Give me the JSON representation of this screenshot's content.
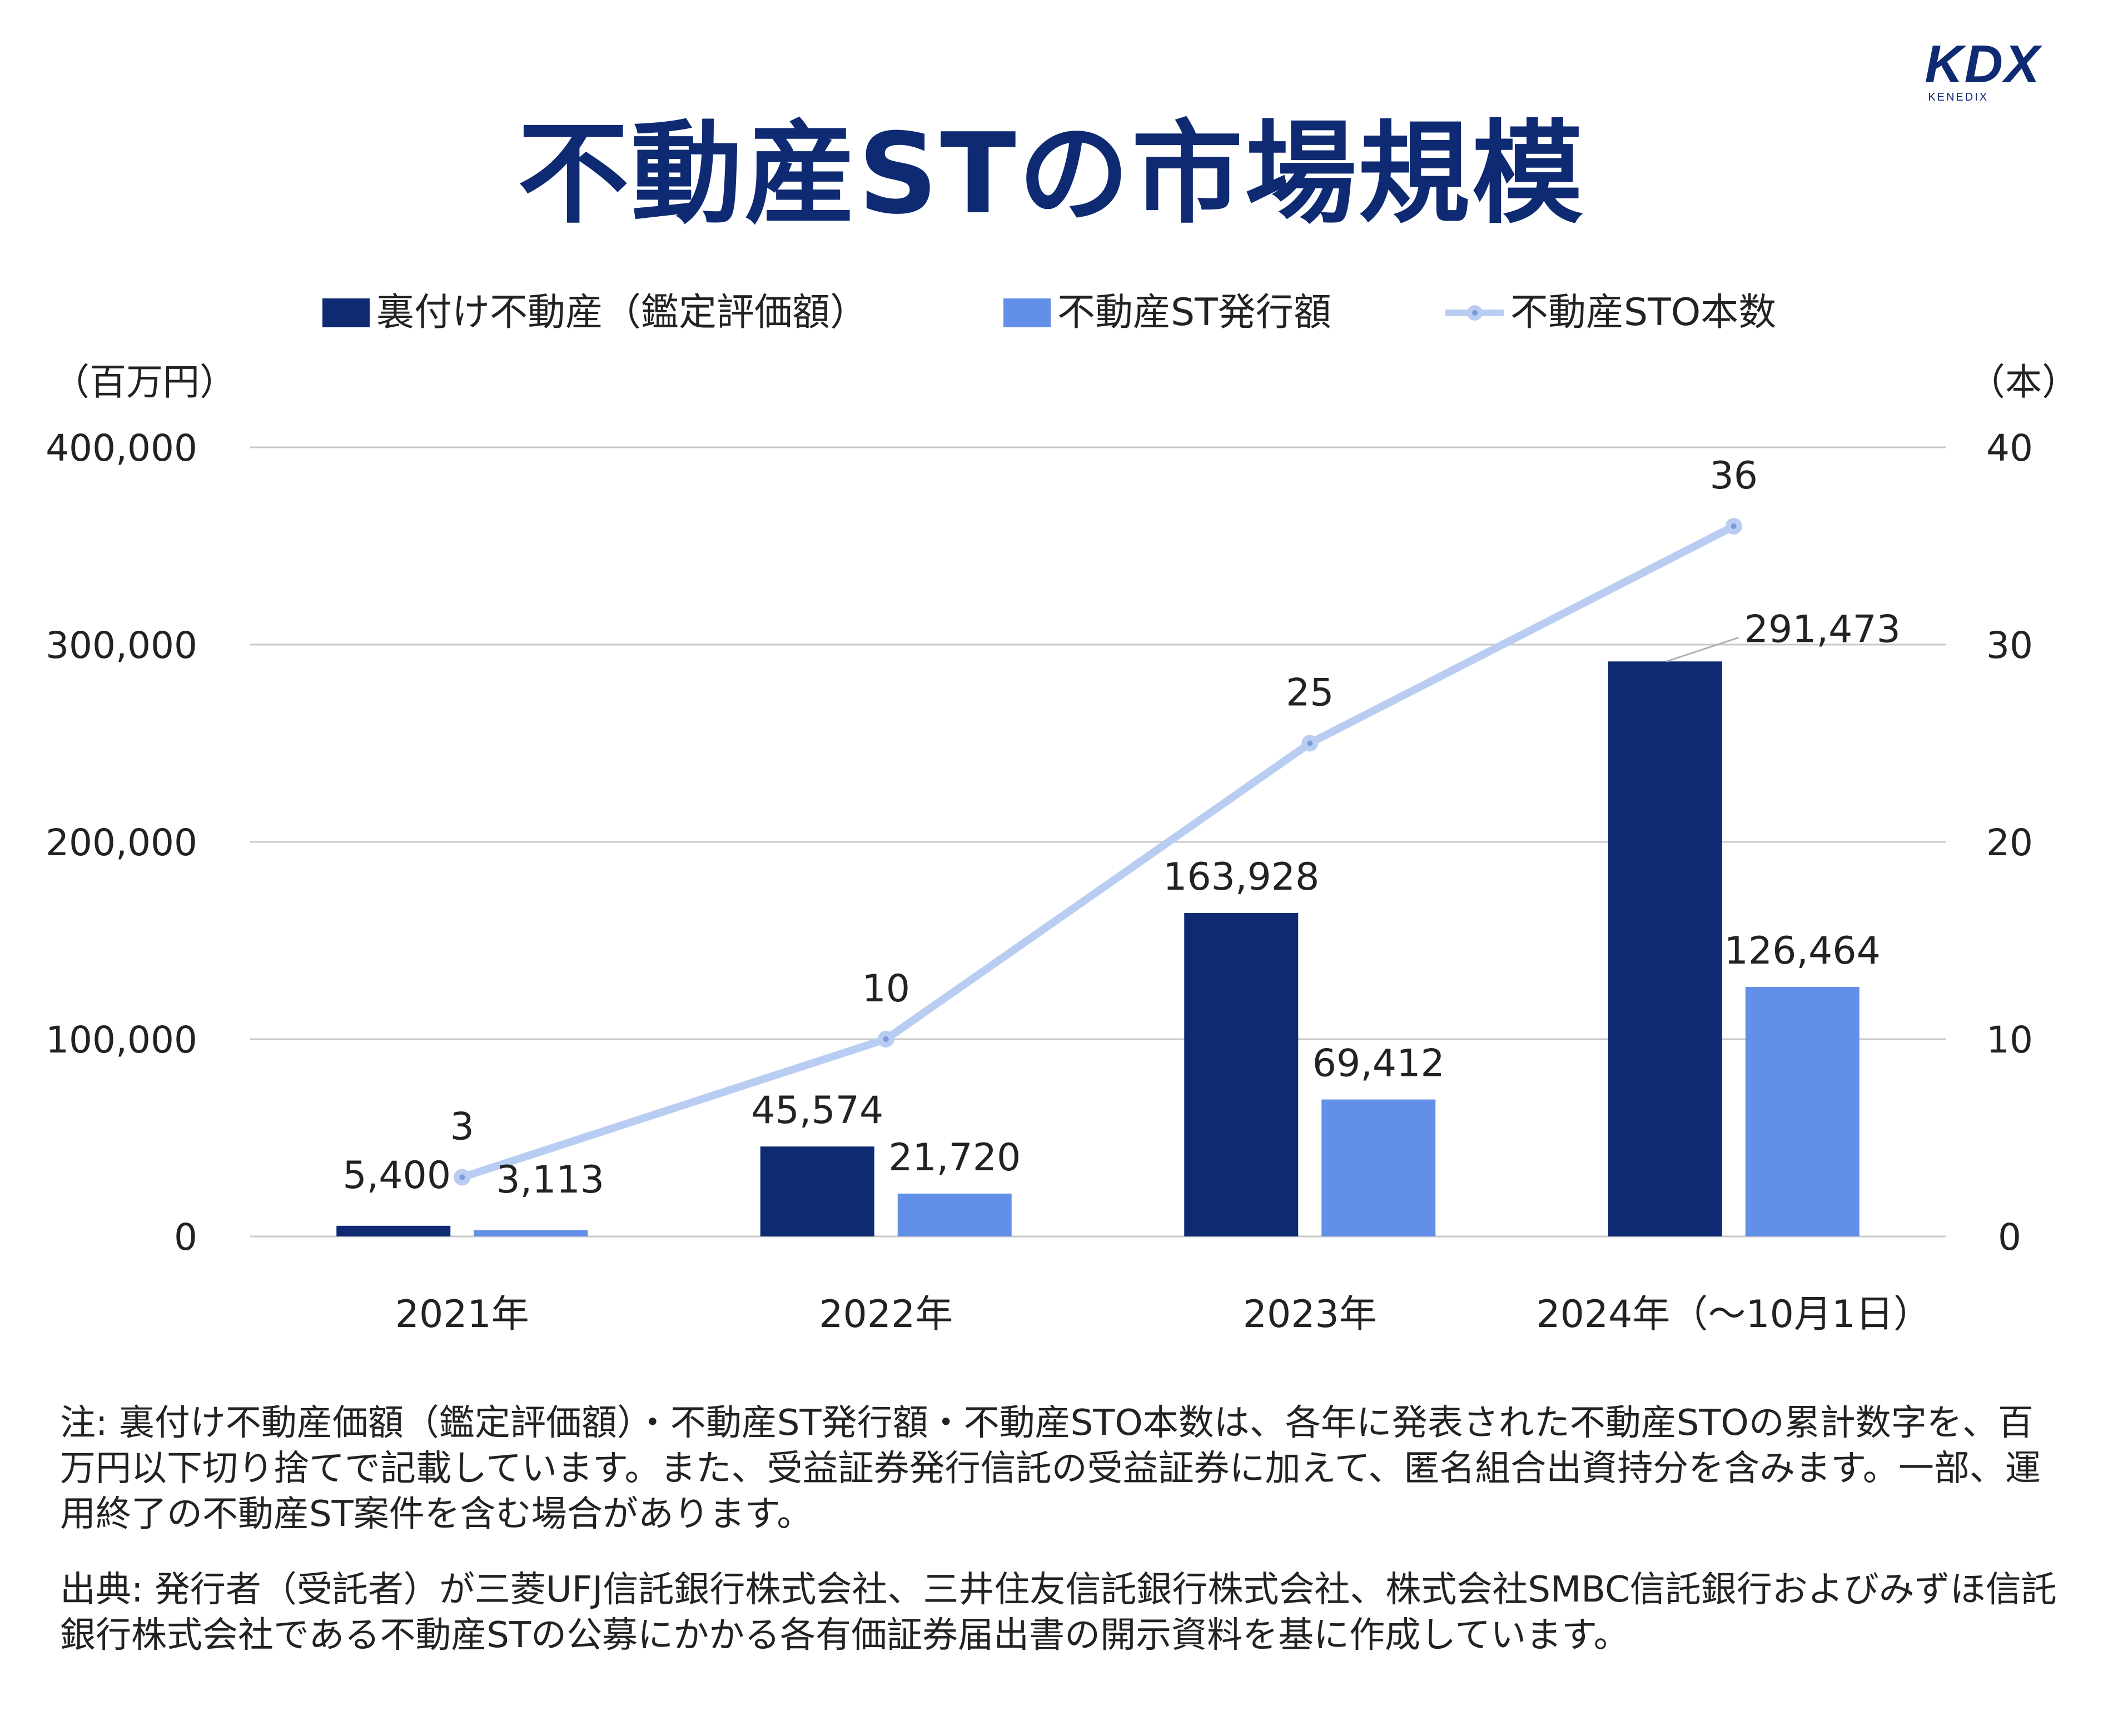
{
  "logo": {
    "main": "KDX",
    "sub": "KENEDIX"
  },
  "title": "不動産STの市場規模",
  "colors": {
    "title": "#0e2a72",
    "bar_dark": "#0e2a72",
    "bar_light": "#628fe8",
    "line": "#b8cdf1",
    "grid": "#c8c8c8"
  },
  "chart_data": {
    "type": "bar",
    "categories": [
      "2021年",
      "2022年",
      "2023年",
      "2024年（～10月1日）"
    ],
    "y_left": {
      "unit": "（百万円）",
      "min": 0,
      "max": 400000,
      "ticks": [
        "0",
        "100,000",
        "200,000",
        "300,000",
        "400,000"
      ]
    },
    "y_right": {
      "unit": "（本）",
      "min": 0,
      "max": 40,
      "ticks": [
        "0",
        "10",
        "20",
        "30",
        "40"
      ]
    },
    "grid": true,
    "legend_position": "top",
    "series": [
      {
        "name": "裏付け不動産（鑑定評価額）",
        "type": "bar",
        "axis": "left",
        "values": [
          5400,
          45574,
          163928,
          291473
        ],
        "labels": [
          "5,400",
          "45,574",
          "163,928",
          "291,473"
        ]
      },
      {
        "name": "不動産ST発行額",
        "type": "bar",
        "axis": "left",
        "values": [
          3113,
          21720,
          69412,
          126464
        ],
        "labels": [
          "3,113",
          "21,720",
          "69,412",
          "126,464"
        ]
      },
      {
        "name": "不動産STO本数",
        "type": "line",
        "axis": "right",
        "values": [
          3,
          10,
          25,
          36
        ],
        "labels": [
          "3",
          "10",
          "25",
          "36"
        ]
      }
    ]
  },
  "notes": {
    "note1": "注: 裏付け不動産価額（鑑定評価額）・不動産ST発行額・不動産STO本数は、各年に発表された不動産STOの累計数字を、百万円以下切り捨てで記載しています。また、受益証券発行信託の受益証券に加えて、匿名組合出資持分を含みます。一部、運用終了の不動産ST案件を含む場合があります。",
    "note2": "出典: 発行者（受託者）が三菱UFJ信託銀行株式会社、三井住友信託銀行株式会社、株式会社SMBC信託銀行およびみずほ信託銀行株式会社である不動産STの公募にかかる各有価証券届出書の開示資料を基に作成しています。"
  }
}
